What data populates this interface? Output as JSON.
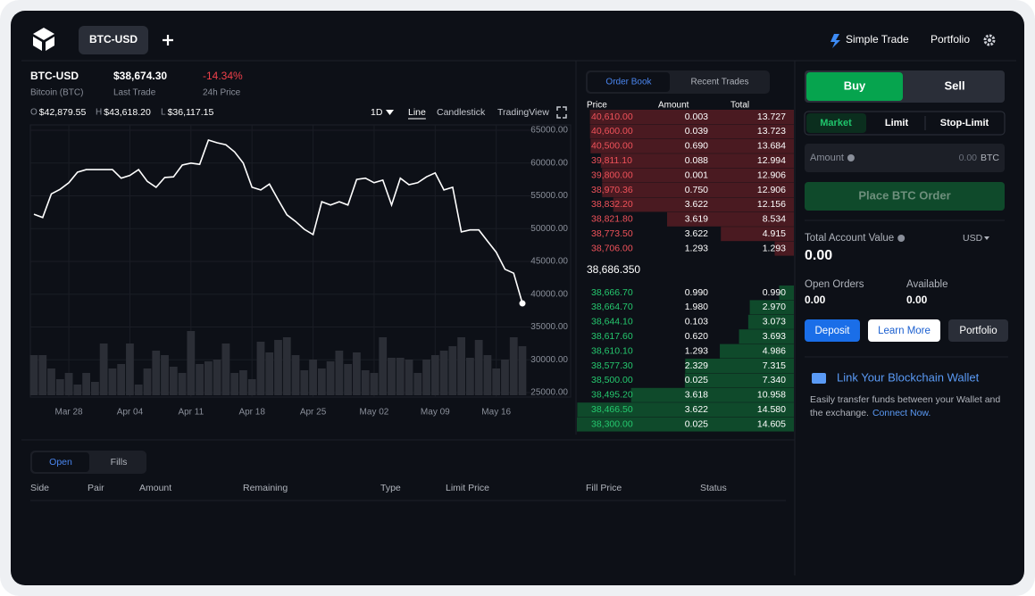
{
  "header": {
    "tab": "BTC-USD",
    "nav": [
      "Simple Trade",
      "Portfolio"
    ]
  },
  "market": {
    "pair": "BTC-USD",
    "name": "Bitcoin (BTC)",
    "last_trade": "$38,674.30",
    "last_trade_label": "Last Trade",
    "change": "-14.34%",
    "change_label": "24h Price",
    "ohlc": [
      {
        "key": "O",
        "value": "$42,879.55"
      },
      {
        "key": "H",
        "value": "$43,618.20"
      },
      {
        "key": "L",
        "value": "$36,117.15"
      }
    ],
    "interval": "1D",
    "views": [
      "Line",
      "Candlestick",
      "TradingView"
    ]
  },
  "price_chart": {
    "type": "line",
    "color": "#ffffff",
    "volume_color": "#2b2e36",
    "values": [
      52200,
      51700,
      55300,
      56000,
      57000,
      58600,
      59000,
      59000,
      59000,
      59000,
      57700,
      58100,
      59000,
      57200,
      56300,
      57800,
      57900,
      59700,
      60000,
      59800,
      63500,
      63100,
      62800,
      61700,
      60000,
      56300,
      55900,
      56800,
      54400,
      52100,
      51100,
      49900,
      49100,
      54100,
      53600,
      54100,
      53600,
      57500,
      57700,
      57000,
      57400,
      53600,
      57700,
      56700,
      57000,
      57900,
      58500,
      55900,
      56300,
      49500,
      49800,
      49800,
      48100,
      46400,
      43800,
      43200,
      38600
    ],
    "volumes": [
      45,
      45,
      30,
      18,
      25,
      12,
      25,
      15,
      58,
      30,
      35,
      58,
      12,
      30,
      50,
      45,
      32,
      25,
      72,
      35,
      38,
      40,
      58,
      25,
      28,
      18,
      60,
      48,
      62,
      65,
      45,
      28,
      40,
      30,
      38,
      50,
      35,
      48,
      28,
      25,
      65,
      42,
      42,
      40,
      25,
      40,
      45,
      50,
      55,
      65,
      42,
      62,
      45,
      30,
      40,
      65,
      55
    ],
    "volume_ylim": [
      0,
      100
    ],
    "xlim": [
      0,
      56
    ],
    "xticks": [
      {
        "value": 4,
        "label": "Mar 28"
      },
      {
        "value": 11,
        "label": "Apr 04"
      },
      {
        "value": 18,
        "label": "Apr 11"
      },
      {
        "value": 25,
        "label": "Apr 18"
      },
      {
        "value": 32,
        "label": "Apr 25"
      },
      {
        "value": 39,
        "label": "May 02"
      },
      {
        "value": 46,
        "label": "May 09"
      },
      {
        "value": 53,
        "label": "May 16"
      }
    ],
    "ylim": [
      25000,
      65000
    ],
    "yticks": [
      {
        "value": 65000,
        "label": "65000.00"
      },
      {
        "value": 60000,
        "label": "60000.00"
      },
      {
        "value": 55000,
        "label": "55000.00"
      },
      {
        "value": 50000,
        "label": "50000.00"
      },
      {
        "value": 45000,
        "label": "45000.00"
      },
      {
        "value": 40000,
        "label": "40000.00"
      },
      {
        "value": 35000,
        "label": "35000.00"
      },
      {
        "value": 30000,
        "label": "30000.00"
      },
      {
        "value": 25000,
        "label": "25000.00"
      }
    ]
  },
  "order_book": {
    "tabs": [
      "Order Book",
      "Recent Trades"
    ],
    "columns": [
      "Price",
      "Amount",
      "Total"
    ],
    "asks": [
      [
        "40,610.00",
        "0.003",
        "13.727"
      ],
      [
        "40,600.00",
        "0.039",
        "13.723"
      ],
      [
        "40,500.00",
        "0.690",
        "13.684"
      ],
      [
        "39,811.10",
        "0.088",
        "12.994"
      ],
      [
        "39,800.00",
        "0.001",
        "12.906"
      ],
      [
        "38,970.36",
        "0.750",
        "12.906"
      ],
      [
        "38,832.20",
        "3.622",
        "12.156"
      ],
      [
        "38,821.80",
        "3.619",
        "8.534"
      ],
      [
        "38,773.50",
        "3.622",
        "4.915"
      ],
      [
        "38,706.00",
        "1.293",
        "1.293"
      ]
    ],
    "mid": "38,686.350",
    "bids": [
      [
        "38,666.70",
        "0.990",
        "0.990"
      ],
      [
        "38,664.70",
        "1.980",
        "2.970"
      ],
      [
        "38,644.10",
        "0.103",
        "3.073"
      ],
      [
        "38,617.60",
        "0.620",
        "3.693"
      ],
      [
        "38,610.10",
        "1.293",
        "4.986"
      ],
      [
        "38,577.30",
        "2.329",
        "7.315"
      ],
      [
        "38,500.00",
        "0.025",
        "7.340"
      ],
      [
        "38,495.20",
        "3.618",
        "10.958"
      ],
      [
        "38,466.50",
        "3.622",
        "14.580"
      ],
      [
        "38,300.00",
        "0.025",
        "14.605"
      ]
    ]
  },
  "orders": {
    "tabs": [
      "Open",
      "Fills"
    ],
    "columns": [
      "Side",
      "Pair",
      "Amount",
      "Remaining",
      "Type",
      "Limit Price",
      "Fill Price",
      "Status"
    ]
  },
  "trade": {
    "sides": [
      "Buy",
      "Sell"
    ],
    "order_types": [
      "Market",
      "Limit",
      "Stop-Limit"
    ],
    "amount_label": "Amount",
    "amount_value": "0.00",
    "amount_unit": "BTC",
    "submit": "Place BTC Order",
    "account_label": "Total Account Value",
    "currency": "USD",
    "account_value": "0.00",
    "open_orders_label": "Open Orders",
    "open_orders": "0.00",
    "available_label": "Available",
    "available": "0.00",
    "buttons": [
      "Deposit",
      "Learn More",
      "Portfolio"
    ]
  },
  "wallet": {
    "title": "Link Your Blockchain Wallet",
    "lines": [
      "Easily transfer funds between your Wallet and",
      "the exchange."
    ],
    "link": "Connect Now."
  }
}
